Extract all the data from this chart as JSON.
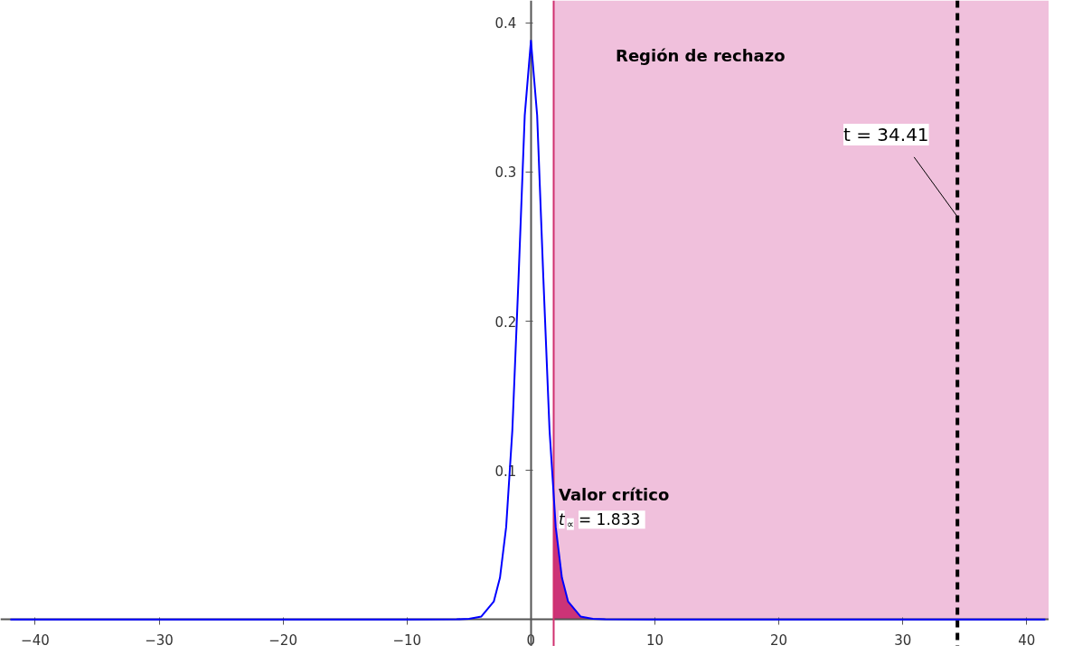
{
  "chart_data": {
    "type": "line",
    "xlim": [
      -42.8,
      41.8
    ],
    "ylim": [
      -0.018,
      0.415
    ],
    "xticks": [
      -40,
      -30,
      -20,
      -10,
      0,
      10,
      20,
      30,
      40
    ],
    "yticks": [
      0.1,
      0.2,
      0.3,
      0.4
    ],
    "grid": false,
    "marker": "none",
    "line_style": "solid",
    "series": [
      {
        "color": "#0000ff",
        "x": [
          -42,
          -10,
          -6,
          -5,
          -4,
          -3,
          -2.5,
          -2,
          -1.5,
          -1,
          -0.5,
          0,
          0.5,
          1,
          1.5,
          2,
          2.5,
          3,
          4,
          5,
          6,
          10,
          41.5
        ],
        "values": [
          0,
          0,
          0.0001,
          0.0005,
          0.002,
          0.012,
          0.028,
          0.062,
          0.127,
          0.229,
          0.338,
          0.388,
          0.338,
          0.229,
          0.127,
          0.062,
          0.028,
          0.012,
          0.002,
          0.0005,
          0.0001,
          0,
          0
        ]
      },
      {
        "type": "area",
        "color": "#cc3377",
        "x": [
          1.833,
          2,
          2.5,
          3,
          4,
          5
        ],
        "values": [
          0.079,
          0.062,
          0.028,
          0.012,
          0.002,
          0.0005
        ]
      }
    ],
    "bands": [
      {
        "axis": "x",
        "from": 1.833,
        "to": 41.8,
        "color": "#f0c0dc"
      }
    ],
    "ref_lines": [
      {
        "axis": "x",
        "value": 1.833,
        "color": "#d0306f",
        "line_style": "solid"
      },
      {
        "axis": "x",
        "value": 34.41,
        "label": "t = 34.41",
        "color": "#000000",
        "line_style": "dashed"
      }
    ],
    "annotations": [
      "Región de rechazo",
      "Valor crítico",
      "t$_{∝}$ = 1.833"
    ]
  }
}
